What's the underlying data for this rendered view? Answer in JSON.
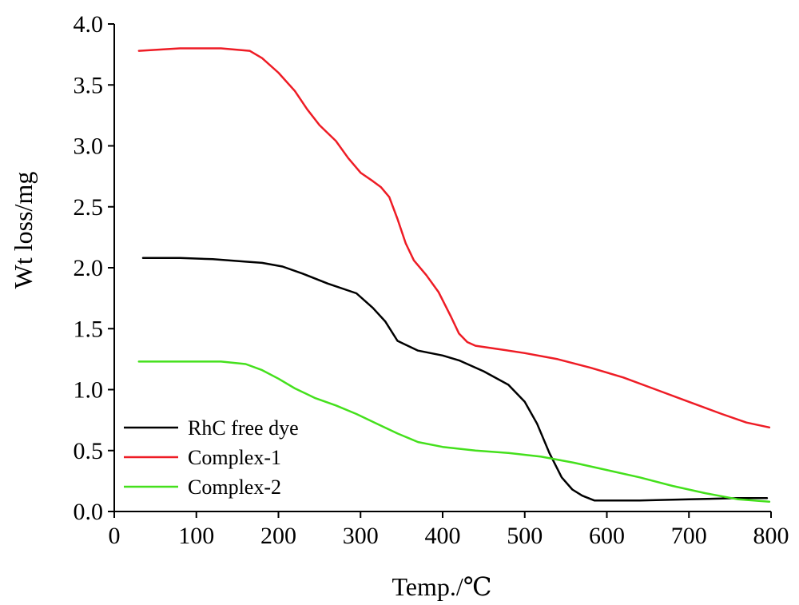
{
  "chart_data": {
    "type": "line",
    "xlabel": "Temp./℃",
    "ylabel": "Wt loss/mg",
    "xlim": [
      0,
      800
    ],
    "ylim": [
      0,
      4.0
    ],
    "xticks": [
      "0",
      "100",
      "200",
      "300",
      "400",
      "500",
      "600",
      "700",
      "800"
    ],
    "yticks": [
      "0.0",
      "0.5",
      "1.0",
      "1.5",
      "2.0",
      "2.5",
      "3.0",
      "3.5",
      "4.0"
    ],
    "grid": false,
    "legend_position": "bottom-left",
    "series": [
      {
        "name": "RhC free dye",
        "color": "#000000",
        "points": [
          [
            35,
            2.08
          ],
          [
            80,
            2.08
          ],
          [
            120,
            2.07
          ],
          [
            160,
            2.05
          ],
          [
            180,
            2.04
          ],
          [
            205,
            2.01
          ],
          [
            230,
            1.95
          ],
          [
            260,
            1.87
          ],
          [
            295,
            1.79
          ],
          [
            315,
            1.67
          ],
          [
            330,
            1.56
          ],
          [
            345,
            1.4
          ],
          [
            370,
            1.32
          ],
          [
            400,
            1.28
          ],
          [
            420,
            1.24
          ],
          [
            450,
            1.15
          ],
          [
            480,
            1.04
          ],
          [
            500,
            0.9
          ],
          [
            515,
            0.72
          ],
          [
            530,
            0.48
          ],
          [
            545,
            0.28
          ],
          [
            558,
            0.18
          ],
          [
            570,
            0.13
          ],
          [
            585,
            0.09
          ],
          [
            640,
            0.09
          ],
          [
            700,
            0.1
          ],
          [
            760,
            0.11
          ],
          [
            795,
            0.11
          ]
        ]
      },
      {
        "name": "Complex-1",
        "color": "#ee1c25",
        "points": [
          [
            30,
            3.78
          ],
          [
            80,
            3.8
          ],
          [
            130,
            3.8
          ],
          [
            165,
            3.78
          ],
          [
            180,
            3.72
          ],
          [
            200,
            3.6
          ],
          [
            220,
            3.45
          ],
          [
            235,
            3.3
          ],
          [
            250,
            3.17
          ],
          [
            270,
            3.04
          ],
          [
            285,
            2.9
          ],
          [
            300,
            2.78
          ],
          [
            315,
            2.71
          ],
          [
            325,
            2.66
          ],
          [
            335,
            2.58
          ],
          [
            345,
            2.4
          ],
          [
            355,
            2.2
          ],
          [
            365,
            2.06
          ],
          [
            380,
            1.94
          ],
          [
            395,
            1.8
          ],
          [
            410,
            1.6
          ],
          [
            420,
            1.46
          ],
          [
            430,
            1.39
          ],
          [
            440,
            1.36
          ],
          [
            460,
            1.34
          ],
          [
            500,
            1.3
          ],
          [
            540,
            1.25
          ],
          [
            580,
            1.18
          ],
          [
            620,
            1.1
          ],
          [
            660,
            1.0
          ],
          [
            700,
            0.9
          ],
          [
            740,
            0.8
          ],
          [
            770,
            0.73
          ],
          [
            798,
            0.69
          ]
        ]
      },
      {
        "name": "Complex-2",
        "color": "#44e01c",
        "points": [
          [
            30,
            1.23
          ],
          [
            80,
            1.23
          ],
          [
            130,
            1.23
          ],
          [
            160,
            1.21
          ],
          [
            180,
            1.16
          ],
          [
            200,
            1.09
          ],
          [
            220,
            1.01
          ],
          [
            245,
            0.93
          ],
          [
            270,
            0.87
          ],
          [
            295,
            0.8
          ],
          [
            320,
            0.72
          ],
          [
            345,
            0.64
          ],
          [
            370,
            0.57
          ],
          [
            400,
            0.53
          ],
          [
            440,
            0.5
          ],
          [
            480,
            0.48
          ],
          [
            520,
            0.45
          ],
          [
            560,
            0.4
          ],
          [
            600,
            0.34
          ],
          [
            640,
            0.28
          ],
          [
            680,
            0.21
          ],
          [
            720,
            0.15
          ],
          [
            760,
            0.1
          ],
          [
            798,
            0.08
          ]
        ]
      }
    ]
  }
}
